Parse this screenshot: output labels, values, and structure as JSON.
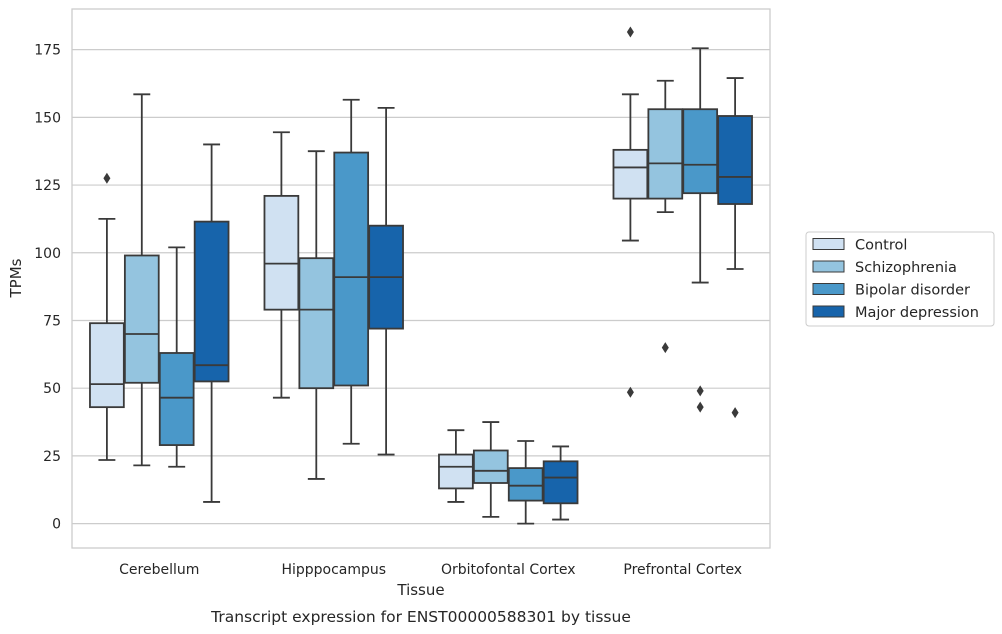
{
  "chart_data": {
    "type": "boxplot",
    "xlabel": "Tissue",
    "ylabel": "TPMs",
    "caption": "Transcript expression for ENST00000588301 by tissue",
    "ylim": [
      -9,
      190
    ],
    "yticks": [
      0,
      25,
      50,
      75,
      100,
      125,
      150,
      175
    ],
    "grid": "horizontal",
    "legend_position": "right",
    "categories": [
      "Cerebellum",
      "Hipppocampus",
      "Orbitofontal Cortex",
      "Prefrontal Cortex"
    ],
    "series": [
      {
        "name": "Control",
        "color": "#d0e1f2",
        "boxes": [
          {
            "whislo": 23.5,
            "q1": 43,
            "med": 51.5,
            "q3": 74,
            "whishi": 112.5,
            "fliers": [
              127.5
            ]
          },
          {
            "whislo": 46.5,
            "q1": 79,
            "med": 96,
            "q3": 121,
            "whishi": 144.5,
            "fliers": []
          },
          {
            "whislo": 8,
            "q1": 13,
            "med": 21,
            "q3": 25.5,
            "whishi": 34.5,
            "fliers": []
          },
          {
            "whislo": 104.5,
            "q1": 120,
            "med": 131.5,
            "q3": 138,
            "whishi": 158.5,
            "fliers": [
              181.5,
              48.5
            ]
          }
        ]
      },
      {
        "name": "Schizophrenia",
        "color": "#94c4df",
        "boxes": [
          {
            "whislo": 21.5,
            "q1": 52,
            "med": 70,
            "q3": 99,
            "whishi": 158.5,
            "fliers": []
          },
          {
            "whislo": 16.5,
            "q1": 50,
            "med": 79,
            "q3": 98,
            "whishi": 137.5,
            "fliers": []
          },
          {
            "whislo": 2.5,
            "q1": 15,
            "med": 19.5,
            "q3": 27,
            "whishi": 37.5,
            "fliers": []
          },
          {
            "whislo": 115,
            "q1": 120,
            "med": 133,
            "q3": 153,
            "whishi": 163.5,
            "fliers": [
              65
            ]
          }
        ]
      },
      {
        "name": "Bipolar disorder",
        "color": "#4a98c9",
        "boxes": [
          {
            "whislo": 21,
            "q1": 29,
            "med": 46.5,
            "q3": 63,
            "whishi": 102,
            "fliers": []
          },
          {
            "whislo": 29.5,
            "q1": 51,
            "med": 91,
            "q3": 137,
            "whishi": 156.5,
            "fliers": []
          },
          {
            "whislo": 0,
            "q1": 8.5,
            "med": 14,
            "q3": 20.5,
            "whishi": 30.5,
            "fliers": []
          },
          {
            "whislo": 89,
            "q1": 122,
            "med": 132.5,
            "q3": 153,
            "whishi": 175.5,
            "fliers": [
              49,
              43
            ]
          }
        ]
      },
      {
        "name": "Major depression",
        "color": "#1764ab",
        "boxes": [
          {
            "whislo": 8,
            "q1": 52.5,
            "med": 58.5,
            "q3": 111.5,
            "whishi": 140,
            "fliers": []
          },
          {
            "whislo": 25.5,
            "q1": 72,
            "med": 91,
            "q3": 110,
            "whishi": 153.5,
            "fliers": []
          },
          {
            "whislo": 1.5,
            "q1": 7.5,
            "med": 17,
            "q3": 23,
            "whishi": 28.5,
            "fliers": []
          },
          {
            "whislo": 94,
            "q1": 118,
            "med": 128,
            "q3": 150.5,
            "whishi": 164.5,
            "fliers": [
              41
            ]
          }
        ]
      }
    ]
  }
}
